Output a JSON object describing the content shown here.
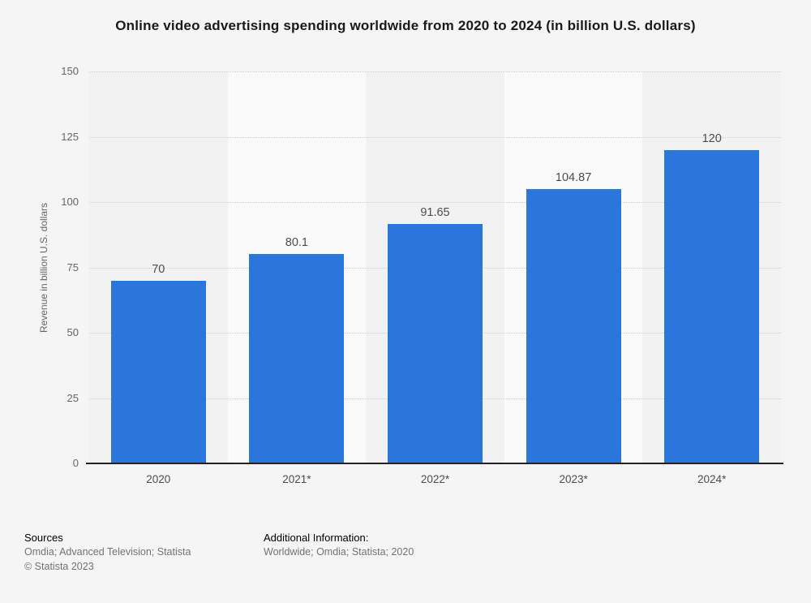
{
  "title": "Online video advertising spending worldwide from 2020 to 2024 (in billion U.S. dollars)",
  "chart_data": {
    "type": "bar",
    "categories": [
      "2020",
      "2021*",
      "2022*",
      "2023*",
      "2024*"
    ],
    "values": [
      70,
      80.1,
      91.65,
      104.87,
      120
    ],
    "value_labels": [
      "70",
      "80.1",
      "91.65",
      "104.87",
      "120"
    ],
    "title": "Online video advertising spending worldwide from 2020 to 2024 (in billion U.S. dollars)",
    "xlabel": "",
    "ylabel": "Revenue in billion U.S. dollars",
    "ylim": [
      0,
      150
    ],
    "yticks": [
      0,
      25,
      50,
      75,
      100,
      125,
      150
    ],
    "grid": "horizontal-dotted",
    "legend": "none",
    "bar_color": "#2a76dc",
    "stripe_colors": [
      "#f2f2f2",
      "#fafafa"
    ],
    "gridline_color": "#cfcfcf",
    "axis_line_color": "#222222",
    "value_label_color": "#4d4d4d",
    "tick_label_color": "#666666"
  },
  "footer": {
    "sources_label": "Sources",
    "sources_line": "Omdia; Advanced Television; Statista",
    "copyright": "© Statista 2023",
    "additional_label": "Additional Information:",
    "additional_line": "Worldwide; Omdia; Statista; 2020"
  }
}
